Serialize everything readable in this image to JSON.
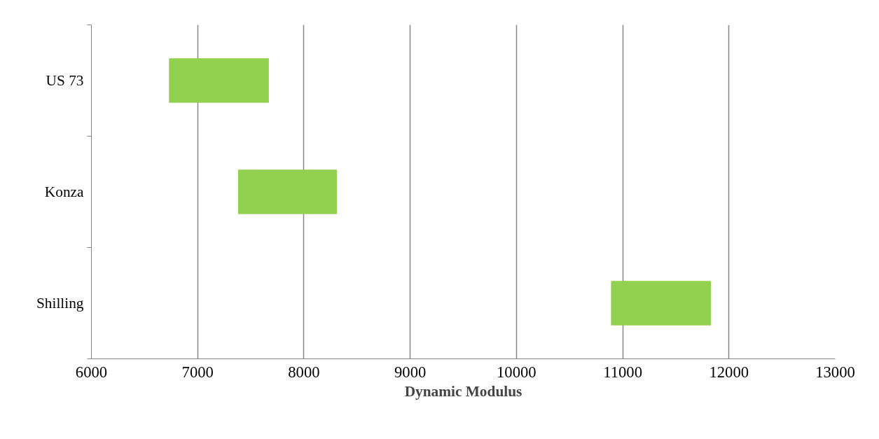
{
  "chart_data": {
    "type": "bar",
    "orientation": "horizontal",
    "xlabel": "Dynamic Modulus",
    "categories": [
      "US 73",
      "Konza",
      "Shilling"
    ],
    "base": [
      6730,
      7380,
      10890
    ],
    "values": [
      940,
      930,
      940
    ],
    "color": "#92d050",
    "xlim": [
      6000,
      13000
    ],
    "xticks": [
      6000,
      7000,
      8000,
      9000,
      10000,
      11000,
      12000,
      13000
    ],
    "grid": "x"
  }
}
